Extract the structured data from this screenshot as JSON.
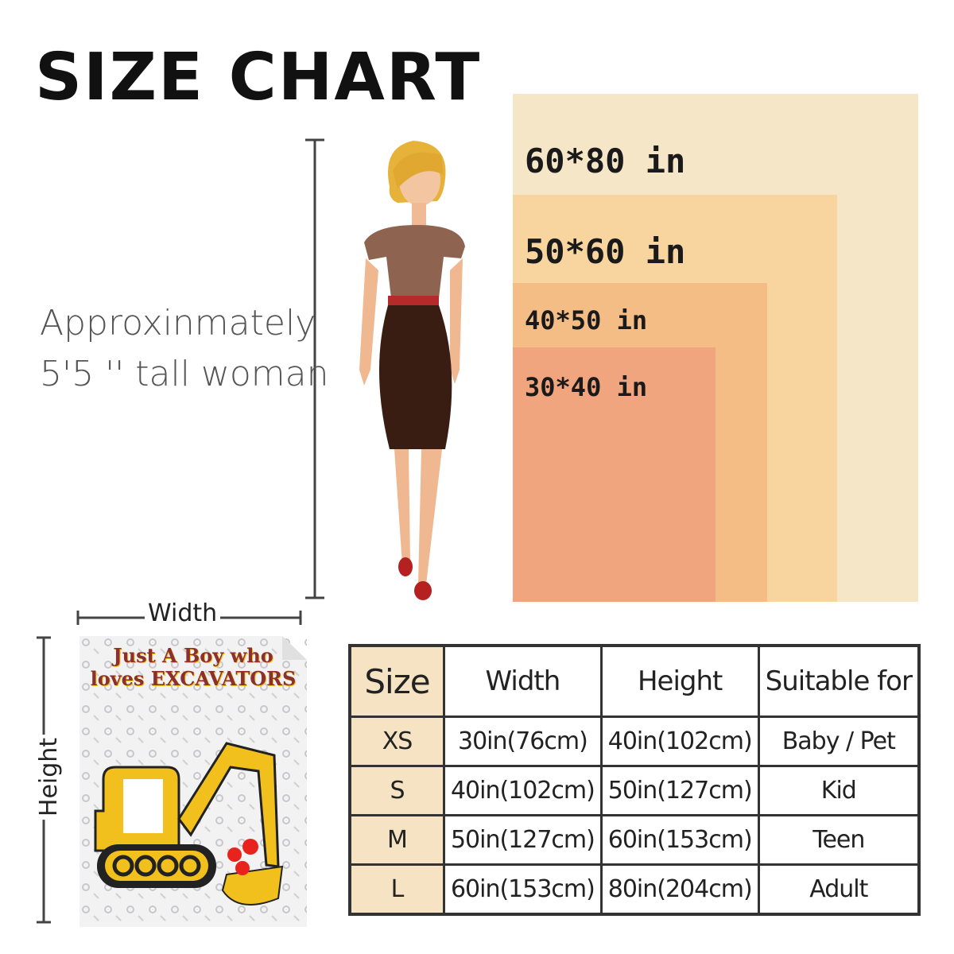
{
  "title": "SIZE CHART",
  "blanket_sizes": [
    {
      "label": "60*80 in",
      "color": "#f6e6c8"
    },
    {
      "label": "50*60 in",
      "color": "#f8d59e"
    },
    {
      "label": "40*50 in",
      "color": "#f5bd86"
    },
    {
      "label": "30*40 in",
      "color": "#f0a57f"
    }
  ],
  "reference": {
    "line1": "Approxinmately",
    "line2": "5'5 '' tall woman"
  },
  "dimensions": {
    "width_label": "Width",
    "height_label": "Height"
  },
  "blanket_print": {
    "text": "Just A Boy who loves EXCAVATORS"
  },
  "table": {
    "headers": [
      "Size",
      "Width",
      "Height",
      "Suitable for"
    ],
    "rows": [
      [
        "XS",
        "30in(76cm)",
        "40in(102cm)",
        "Baby / Pet"
      ],
      [
        "S",
        "40in(102cm)",
        "50in(127cm)",
        "Kid"
      ],
      [
        "M",
        "50in(127cm)",
        "60in(153cm)",
        "Teen"
      ],
      [
        "L",
        "60in(153cm)",
        "80in(204cm)",
        "Adult"
      ]
    ]
  }
}
